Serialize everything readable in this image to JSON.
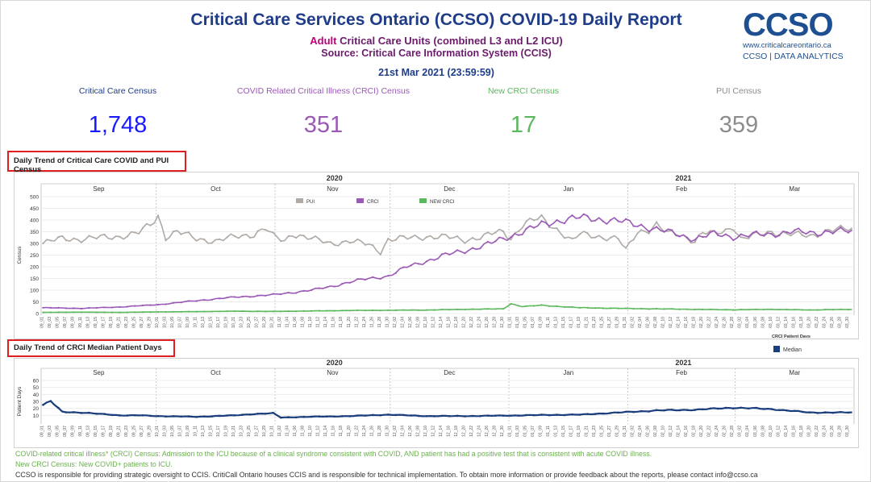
{
  "header": {
    "title": "Critical Care Services Ontario (CCSO) COVID-19 Daily Report",
    "subtitle_prefix": "Adult",
    "subtitle_rest": " Critical Care Units (combined L3 and L2 ICU)",
    "source": "Source: Critical Care Information System (CCIS)",
    "datetime": "21st Mar 2021 (23:59:59)"
  },
  "logo": {
    "mark": "CCSO",
    "url": "www.criticalcareontario.ca",
    "tagline": "CCSO | DATA ANALYTICS"
  },
  "kpis": [
    {
      "label": "Critical Care Census",
      "value": "1,748",
      "color": "#1a1aff",
      "label_color": "#1f3c88"
    },
    {
      "label": "COVID Related Critical Illness (CRCI) Census",
      "value": "351",
      "color": "#9b59b6",
      "label_color": "#9b59b6"
    },
    {
      "label": "New CRCI Census",
      "value": "17",
      "color": "#5cb85c",
      "label_color": "#5cb85c"
    },
    {
      "label": "PUI Census",
      "value": "359",
      "color": "#8c8c8c",
      "label_color": "#8c8c8c"
    }
  ],
  "sections": {
    "census_title": "Daily Trend of Critical Care COVID and PUI Census",
    "median_title": "Daily Trend of CRCI Median Patient Days"
  },
  "chart_data": [
    {
      "type": "line",
      "title": "Daily Trend of Critical Care COVID and PUI Census",
      "ylabel": "Census",
      "ylim": [
        0,
        500
      ],
      "yticks": [
        0,
        50,
        100,
        150,
        200,
        250,
        300,
        350,
        400,
        450,
        500
      ],
      "years": [
        {
          "label": "2020",
          "month_index": 2
        },
        {
          "label": "2021",
          "month_index": 5
        }
      ],
      "months": [
        "Sep",
        "Oct",
        "Nov",
        "Dec",
        "Jan",
        "Feb",
        "Mar"
      ],
      "x_start": "2020-09-01",
      "x_end": "2021-03-31",
      "legend": [
        "PUI",
        "CRCI",
        "NEW CRCI"
      ],
      "series": [
        {
          "name": "PUI",
          "color": "#b0aaa6",
          "anchors": [
            [
              0,
              300
            ],
            [
              5,
              322
            ],
            [
              10,
              318
            ],
            [
              15,
              325
            ],
            [
              20,
              330
            ],
            [
              25,
              345
            ],
            [
              28,
              380
            ],
            [
              30,
              417
            ],
            [
              32,
              328
            ],
            [
              35,
              350
            ],
            [
              40,
              320
            ],
            [
              45,
              310
            ],
            [
              50,
              328
            ],
            [
              55,
              340
            ],
            [
              58,
              365
            ],
            [
              60,
              330
            ],
            [
              63,
              310
            ],
            [
              65,
              343
            ],
            [
              70,
              320
            ],
            [
              75,
              300
            ],
            [
              80,
              310
            ],
            [
              85,
              295
            ],
            [
              88,
              265
            ],
            [
              90,
              317
            ],
            [
              95,
              322
            ],
            [
              100,
              330
            ],
            [
              105,
              327
            ],
            [
              110,
              315
            ],
            [
              115,
              330
            ],
            [
              118,
              345
            ],
            [
              120,
              350
            ],
            [
              122,
              322
            ],
            [
              125,
              380
            ],
            [
              128,
              400
            ],
            [
              130,
              405
            ],
            [
              135,
              350
            ],
            [
              138,
              310
            ],
            [
              140,
              340
            ],
            [
              145,
              330
            ],
            [
              150,
              320
            ],
            [
              152,
              270
            ],
            [
              155,
              350
            ],
            [
              158,
              360
            ],
            [
              160,
              380
            ],
            [
              163,
              340
            ],
            [
              165,
              344
            ],
            [
              168,
              325
            ],
            [
              170,
              310
            ],
            [
              172,
              346
            ],
            [
              175,
              340
            ],
            [
              178,
              355
            ],
            [
              180,
              375
            ],
            [
              182,
              320
            ],
            [
              185,
              330
            ],
            [
              188,
              342
            ],
            [
              190,
              350
            ],
            [
              195,
              340
            ],
            [
              200,
              330
            ],
            [
              205,
              359
            ]
          ]
        },
        {
          "name": "CRCI",
          "color": "#9b59b6",
          "anchors": [
            [
              0,
              25
            ],
            [
              10,
              22
            ],
            [
              20,
              28
            ],
            [
              30,
              38
            ],
            [
              40,
              55
            ],
            [
              50,
              70
            ],
            [
              60,
              80
            ],
            [
              70,
              100
            ],
            [
              75,
              115
            ],
            [
              80,
              135
            ],
            [
              85,
              150
            ],
            [
              90,
              160
            ],
            [
              95,
              200
            ],
            [
              100,
              225
            ],
            [
              105,
              250
            ],
            [
              110,
              270
            ],
            [
              115,
              290
            ],
            [
              120,
              320
            ],
            [
              125,
              350
            ],
            [
              130,
              380
            ],
            [
              135,
              400
            ],
            [
              140,
              410
            ],
            [
              145,
              405
            ],
            [
              150,
              395
            ],
            [
              155,
              380
            ],
            [
              160,
              360
            ],
            [
              165,
              340
            ],
            [
              170,
              320
            ],
            [
              175,
              340
            ],
            [
              180,
              330
            ],
            [
              185,
              335
            ],
            [
              190,
              340
            ],
            [
              195,
              350
            ],
            [
              200,
              345
            ],
            [
              205,
              351
            ]
          ]
        },
        {
          "name": "NEW CRCI",
          "color": "#5cb85c",
          "anchors": [
            [
              0,
              5
            ],
            [
              10,
              6
            ],
            [
              20,
              5
            ],
            [
              30,
              7
            ],
            [
              40,
              8
            ],
            [
              50,
              10
            ],
            [
              60,
              9
            ],
            [
              70,
              11
            ],
            [
              80,
              13
            ],
            [
              90,
              14
            ],
            [
              100,
              15
            ],
            [
              110,
              18
            ],
            [
              120,
              20
            ],
            [
              122,
              42
            ],
            [
              125,
              30
            ],
            [
              130,
              35
            ],
            [
              140,
              25
            ],
            [
              150,
              22
            ],
            [
              160,
              20
            ],
            [
              170,
              18
            ],
            [
              180,
              16
            ],
            [
              190,
              18
            ],
            [
              200,
              15
            ],
            [
              205,
              17
            ]
          ]
        }
      ]
    },
    {
      "type": "line",
      "title": "Daily Trend of CRCI Median Patient Days",
      "ylabel": "Patient Days",
      "ylim": [
        0,
        60
      ],
      "yticks": [
        10,
        20,
        30,
        40,
        50,
        60
      ],
      "years": [
        {
          "label": "2020",
          "month_index": 2
        },
        {
          "label": "2021",
          "month_index": 5
        }
      ],
      "months": [
        "Sep",
        "Oct",
        "Nov",
        "Dec",
        "Jan",
        "Feb",
        "Mar"
      ],
      "x_start": "2020-09-01",
      "x_end": "2021-03-31",
      "legend_title": "CRCI Patient Days",
      "legend": [
        "Median"
      ],
      "series": [
        {
          "name": "Median",
          "color": "#1a3d7c",
          "anchors": [
            [
              0,
              25
            ],
            [
              2,
              30.1
            ],
            [
              5,
              15
            ],
            [
              10,
              14
            ],
            [
              15,
              12
            ],
            [
              20,
              10
            ],
            [
              25,
              10
            ],
            [
              30,
              9
            ],
            [
              40,
              8
            ],
            [
              50,
              10
            ],
            [
              55,
              12
            ],
            [
              60,
              13
            ],
            [
              62,
              7
            ],
            [
              70,
              8
            ],
            [
              80,
              9
            ],
            [
              90,
              11
            ],
            [
              100,
              9
            ],
            [
              110,
              9
            ],
            [
              120,
              9.6
            ],
            [
              130,
              10.5
            ],
            [
              140,
              11
            ],
            [
              150,
              14
            ],
            [
              160,
              17
            ],
            [
              170,
              18
            ],
            [
              180,
              21
            ],
            [
              190,
              19
            ],
            [
              200,
              14
            ],
            [
              205,
              14.1
            ]
          ]
        }
      ]
    }
  ],
  "footnotes": [
    {
      "text": "COVID-related critical illness* (CRCI) Census: Admission to the ICU because of a clinical syndrome consistent with COVID, AND patient has had a positive test that is consistent with acute COVID illness.",
      "color": "#6ab04c"
    },
    {
      "text": "New CRCI Census: New COVID+ patients to ICU.",
      "color": "#6ab04c"
    },
    {
      "text": "CCSO is responsible for providing strategic oversight to CCIS. CritiCall Ontario houses CCIS and is responsible for technical implementation. To obtain more information or provide feedback about the reports, please contact info@ccso.ca",
      "color": "#333333"
    }
  ]
}
